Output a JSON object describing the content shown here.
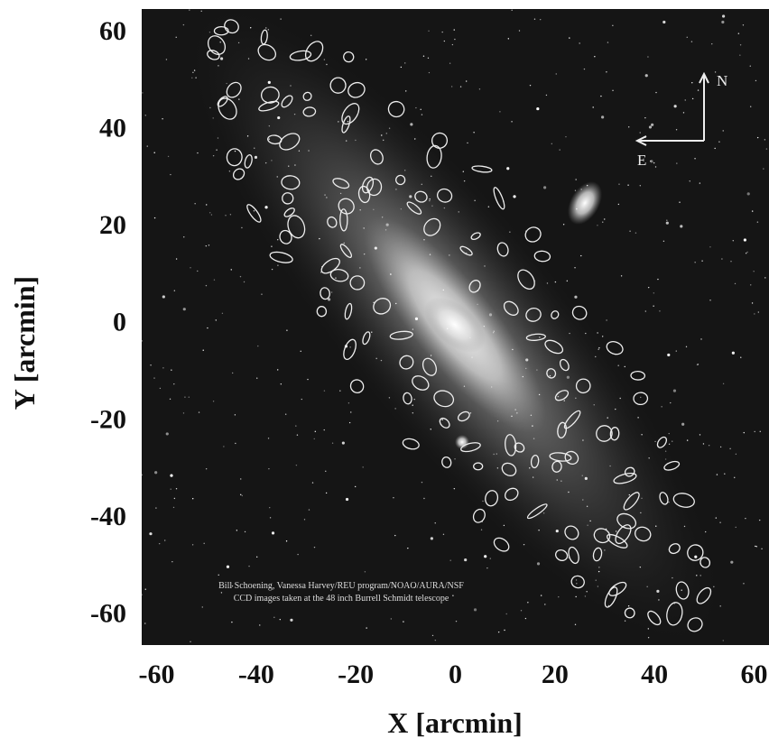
{
  "chart_data": {
    "type": "image",
    "x_label": "X [arcmin]",
    "y_label": "Y [arcmin]",
    "xlim": [
      -63,
      63
    ],
    "ylim": [
      -66,
      65
    ],
    "xticks": [
      -60,
      -40,
      -20,
      0,
      20,
      40,
      60
    ],
    "yticks": [
      -60,
      -40,
      -20,
      0,
      20,
      40,
      60
    ],
    "annotations": {
      "north": "N",
      "east": "E",
      "credit_1": "Bill Schoening, Vanessa Harvey/REU program/NOAO/AURA/NSF",
      "credit_2": "CCD images taken at the 48 inch Burrell Schmidt telescope"
    }
  }
}
